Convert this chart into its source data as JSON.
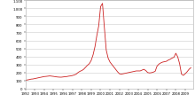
{
  "line_color": "#cc2222",
  "background_color": "#ffffff",
  "grid_color": "#cccccc",
  "ylim": [
    0,
    1100
  ],
  "xlim": [
    1992,
    2009.83
  ],
  "yticks": [
    0,
    100,
    200,
    300,
    400,
    500,
    600,
    700,
    800,
    900,
    1000,
    1100
  ],
  "xticks": [
    1992,
    1993,
    1994,
    1995,
    1996,
    1997,
    1998,
    1999,
    2000,
    2001,
    2002,
    2003,
    2004,
    2005,
    2006,
    2007,
    2008,
    2009
  ],
  "years": [
    1992.0,
    1992.2,
    1992.4,
    1992.6,
    1992.8,
    1993.0,
    1993.2,
    1993.4,
    1993.6,
    1993.8,
    1994.0,
    1994.2,
    1994.4,
    1994.6,
    1994.8,
    1995.0,
    1995.2,
    1995.4,
    1995.6,
    1995.8,
    1996.0,
    1996.2,
    1996.4,
    1996.6,
    1996.8,
    1997.0,
    1997.2,
    1997.4,
    1997.6,
    1997.8,
    1998.0,
    1998.2,
    1998.4,
    1998.6,
    1998.8,
    1999.0,
    1999.2,
    1999.4,
    1999.6,
    1999.8,
    2000.0,
    2000.2,
    2000.4,
    2000.6,
    2000.8,
    2001.0,
    2001.2,
    2001.4,
    2001.6,
    2001.8,
    2002.0,
    2002.2,
    2002.4,
    2002.6,
    2002.8,
    2003.0,
    2003.2,
    2003.4,
    2003.6,
    2003.8,
    2004.0,
    2004.2,
    2004.4,
    2004.6,
    2004.8,
    2005.0,
    2005.2,
    2005.4,
    2005.6,
    2005.8,
    2006.0,
    2006.2,
    2006.4,
    2006.6,
    2006.8,
    2007.0,
    2007.2,
    2007.4,
    2007.6,
    2007.8,
    2008.0,
    2008.2,
    2008.4,
    2008.6,
    2008.8,
    2009.0,
    2009.2,
    2009.4,
    2009.6
  ],
  "prices": [
    100,
    108,
    112,
    118,
    120,
    125,
    130,
    135,
    140,
    145,
    150,
    152,
    155,
    158,
    155,
    152,
    148,
    145,
    143,
    142,
    145,
    148,
    150,
    155,
    158,
    163,
    170,
    180,
    200,
    215,
    225,
    240,
    265,
    290,
    310,
    350,
    420,
    520,
    660,
    780,
    1020,
    1060,
    760,
    480,
    380,
    330,
    300,
    270,
    240,
    210,
    185,
    180,
    185,
    190,
    195,
    200,
    205,
    210,
    215,
    220,
    220,
    220,
    230,
    240,
    225,
    200,
    195,
    198,
    205,
    215,
    280,
    305,
    320,
    330,
    335,
    340,
    355,
    365,
    380,
    390,
    440,
    395,
    310,
    180,
    165,
    185,
    210,
    240,
    260
  ]
}
